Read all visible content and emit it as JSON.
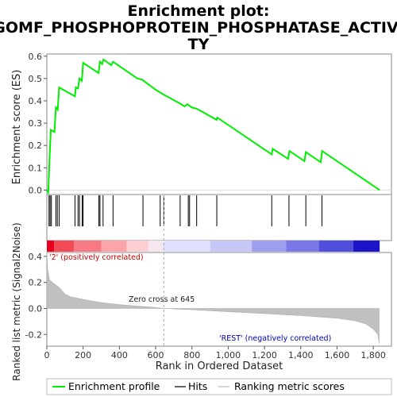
{
  "chart_data": {
    "type": "line",
    "title_lines": [
      "Enrichment plot:",
      "GOMF_PHOSPHOPROTEIN_PHOSPHATASE_ACTIVI",
      "TY"
    ],
    "top_panel": {
      "ylabel": "Enrichment score (ES)",
      "ylim": [
        -0.02,
        0.61
      ],
      "yticks": [
        "0.0",
        "0.1",
        "0.2",
        "0.3",
        "0.4",
        "0.5",
        "0.6"
      ],
      "ytick_values": [
        0.0,
        0.1,
        0.2,
        0.3,
        0.4,
        0.5,
        0.6
      ],
      "enrichment_profile": {
        "name": "Enrichment profile",
        "color": "#00ee00",
        "points": [
          [
            0,
            0.0
          ],
          [
            8,
            -0.01
          ],
          [
            15,
            0.14
          ],
          [
            22,
            0.27
          ],
          [
            42,
            0.26
          ],
          [
            50,
            0.37
          ],
          [
            60,
            0.36
          ],
          [
            68,
            0.46
          ],
          [
            155,
            0.42
          ],
          [
            160,
            0.46
          ],
          [
            172,
            0.455
          ],
          [
            180,
            0.5
          ],
          [
            193,
            0.49
          ],
          [
            200,
            0.57
          ],
          [
            285,
            0.525
          ],
          [
            293,
            0.575
          ],
          [
            305,
            0.565
          ],
          [
            312,
            0.585
          ],
          [
            355,
            0.56
          ],
          [
            365,
            0.575
          ],
          [
            500,
            0.5
          ],
          [
            525,
            0.495
          ],
          [
            600,
            0.45
          ],
          [
            640,
            0.43
          ],
          [
            730,
            0.39
          ],
          [
            760,
            0.375
          ],
          [
            775,
            0.385
          ],
          [
            800,
            0.37
          ],
          [
            825,
            0.365
          ],
          [
            860,
            0.35
          ],
          [
            935,
            0.315
          ],
          [
            940,
            0.325
          ],
          [
            1240,
            0.16
          ],
          [
            1245,
            0.185
          ],
          [
            1330,
            0.14
          ],
          [
            1338,
            0.175
          ],
          [
            1420,
            0.13
          ],
          [
            1428,
            0.17
          ],
          [
            1510,
            0.125
          ],
          [
            1518,
            0.175
          ],
          [
            1835,
            0.0
          ]
        ]
      }
    },
    "hits": [
      12,
      18,
      25,
      50,
      58,
      68,
      155,
      172,
      180,
      195,
      200,
      287,
      293,
      310,
      365,
      530,
      625,
      645,
      735,
      780,
      787,
      826,
      937,
      1240,
      1335,
      1428,
      1517
    ],
    "bottom_panel": {
      "ylabel": "Ranked list metric (Signal2Noise)",
      "ylim": [
        -0.29,
        0.43
      ],
      "yticks": [
        "0.4",
        "0.2",
        "0.0",
        "-0.2"
      ],
      "ytick_values": [
        0.4,
        0.2,
        0.0,
        -0.2
      ],
      "metric_curve": [
        [
          0,
          0.43
        ],
        [
          4,
          0.3
        ],
        [
          15,
          0.22
        ],
        [
          40,
          0.19
        ],
        [
          70,
          0.16
        ],
        [
          100,
          0.11
        ],
        [
          130,
          0.09
        ],
        [
          200,
          0.07
        ],
        [
          300,
          0.045
        ],
        [
          400,
          0.03
        ],
        [
          500,
          0.018
        ],
        [
          600,
          0.008
        ],
        [
          645,
          0.0
        ],
        [
          800,
          -0.01
        ],
        [
          1000,
          -0.025
        ],
        [
          1200,
          -0.04
        ],
        [
          1400,
          -0.055
        ],
        [
          1600,
          -0.075
        ],
        [
          1700,
          -0.095
        ],
        [
          1760,
          -0.12
        ],
        [
          1800,
          -0.16
        ],
        [
          1825,
          -0.2
        ],
        [
          1832,
          -0.27
        ]
      ],
      "zero_cross_text": "Zero cross at 645",
      "zero_cross_x": 645,
      "positive_label": "'2' (positively correlated)",
      "negative_label": "'REST' (negatively correlated)"
    },
    "xlabel": "Rank in Ordered Dataset",
    "xlim": [
      0,
      1900
    ],
    "xticks": [
      "0",
      "200",
      "400",
      "600",
      "800",
      "1,000",
      "1,200",
      "1,400",
      "1,600",
      "1,800"
    ],
    "xtick_values": [
      0,
      200,
      400,
      600,
      800,
      1000,
      1200,
      1400,
      1600,
      1800
    ],
    "dataset_length": 1835,
    "colors": {
      "profile": "#00ee00",
      "hits": "#000000",
      "metric_fill": "#c0c0c0",
      "positive_text": "#cc0000",
      "negative_text": "#0000bb",
      "zero_line": "#aaaaaa"
    },
    "heat_segments": [
      {
        "x0": 0,
        "x1": 40,
        "color": "#e8001c"
      },
      {
        "x0": 40,
        "x1": 150,
        "color": "#f24a55"
      },
      {
        "x0": 150,
        "x1": 300,
        "color": "#f77a82"
      },
      {
        "x0": 300,
        "x1": 440,
        "color": "#fba5aa"
      },
      {
        "x0": 440,
        "x1": 560,
        "color": "#fdcfd3"
      },
      {
        "x0": 560,
        "x1": 640,
        "color": "#f5e6f0"
      },
      {
        "x0": 640,
        "x1": 900,
        "color": "#e0e0ff"
      },
      {
        "x0": 900,
        "x1": 1130,
        "color": "#c8c8f8"
      },
      {
        "x0": 1130,
        "x1": 1320,
        "color": "#9f9ff0"
      },
      {
        "x0": 1320,
        "x1": 1500,
        "color": "#7878e8"
      },
      {
        "x0": 1500,
        "x1": 1690,
        "color": "#5050dc"
      },
      {
        "x0": 1690,
        "x1": 1835,
        "color": "#1c14c8"
      }
    ],
    "legend": [
      {
        "name": "Enrichment profile",
        "color": "#00ee00"
      },
      {
        "name": "Hits",
        "color": "#000000"
      },
      {
        "name": "Ranking metric scores",
        "color": "#bbbbbb"
      }
    ]
  }
}
